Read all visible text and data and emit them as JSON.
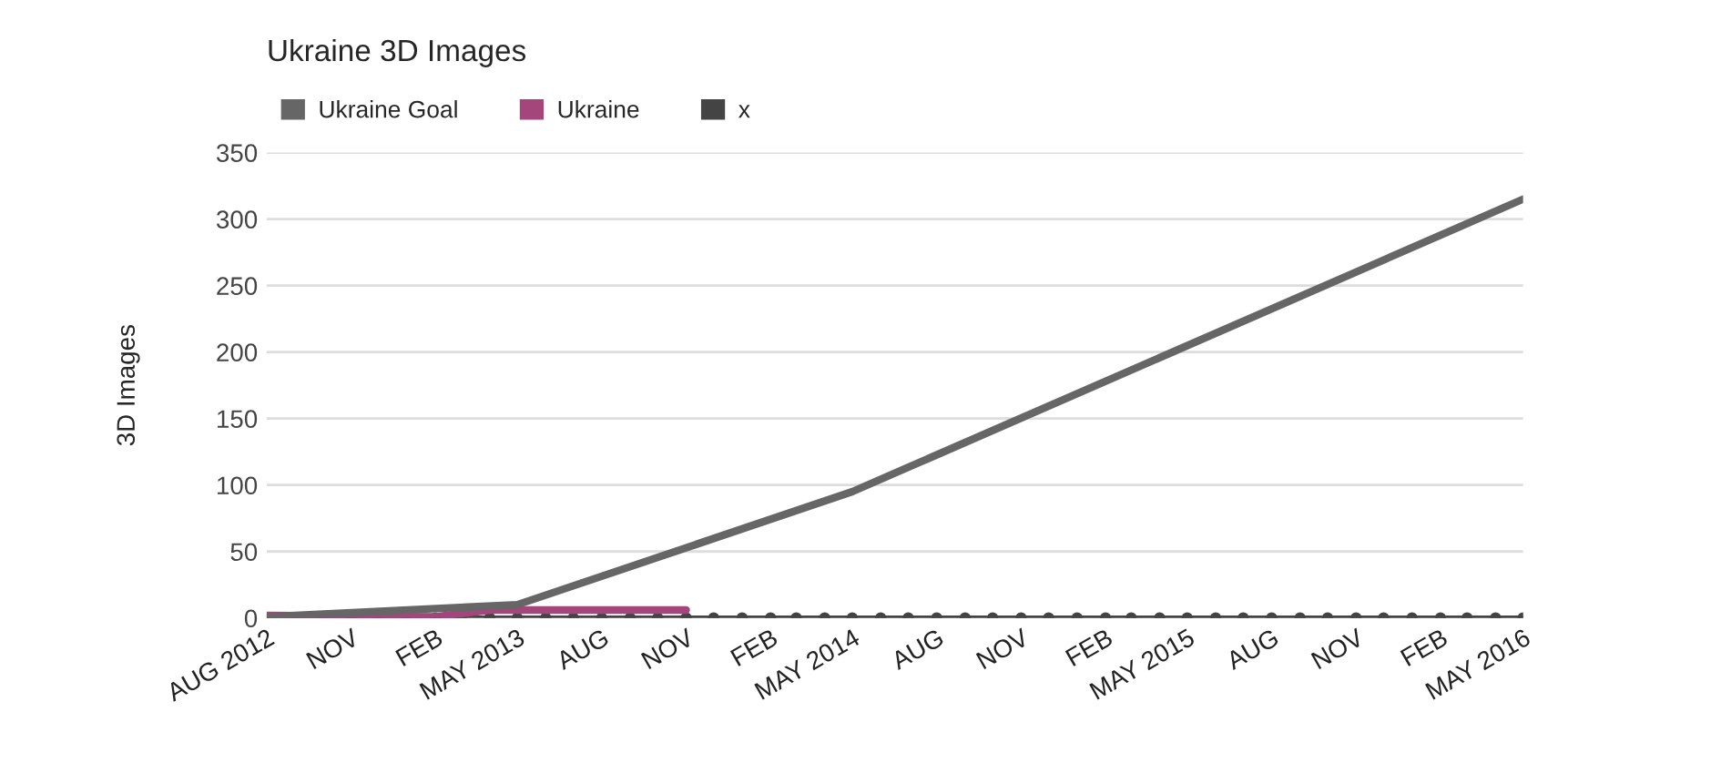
{
  "chart_data": {
    "type": "line",
    "title": "Ukraine 3D Images",
    "ylabel": "3D Images",
    "xlim": [
      "2012-08",
      "2016-05"
    ],
    "xticks": [
      {
        "value": "2012-08",
        "label": "AUG 2012"
      },
      {
        "value": "2012-11",
        "label": "NOV"
      },
      {
        "value": "2013-02",
        "label": "FEB"
      },
      {
        "value": "2013-05",
        "label": "MAY 2013"
      },
      {
        "value": "2013-08",
        "label": "AUG"
      },
      {
        "value": "2013-11",
        "label": "NOV"
      },
      {
        "value": "2014-02",
        "label": "FEB"
      },
      {
        "value": "2014-05",
        "label": "MAY 2014"
      },
      {
        "value": "2014-08",
        "label": "AUG"
      },
      {
        "value": "2014-11",
        "label": "NOV"
      },
      {
        "value": "2015-02",
        "label": "FEB"
      },
      {
        "value": "2015-05",
        "label": "MAY 2015"
      },
      {
        "value": "2015-08",
        "label": "AUG"
      },
      {
        "value": "2015-11",
        "label": "NOV"
      },
      {
        "value": "2016-02",
        "label": "FEB"
      },
      {
        "value": "2016-05",
        "label": "MAY 2016"
      }
    ],
    "ylim": [
      0,
      350
    ],
    "yticks": [
      0,
      50,
      100,
      150,
      200,
      250,
      300,
      350
    ],
    "grid": "y",
    "legend": "top left",
    "series": [
      {
        "name": "Ukraine Goal",
        "color": "#666666",
        "x": [
          "2012-08",
          "2013-05",
          "2014-05",
          "2016-05"
        ],
        "values": [
          1,
          10,
          95,
          315
        ]
      },
      {
        "name": "Ukraine",
        "color": "#a4457c",
        "x": [
          "2012-08",
          "2013-02",
          "2013-04",
          "2013-11"
        ],
        "values": [
          2,
          1,
          6,
          6
        ]
      },
      {
        "name": "x",
        "color": "#444444",
        "marker": "circle",
        "x": [
          "2012-08",
          "2012-09",
          "2012-10",
          "2012-11",
          "2012-12",
          "2013-01",
          "2013-02",
          "2013-03",
          "2013-04",
          "2013-05",
          "2013-06",
          "2013-07",
          "2013-08",
          "2013-09",
          "2013-10",
          "2013-11",
          "2013-12",
          "2014-01",
          "2014-02",
          "2014-03",
          "2014-04",
          "2014-05",
          "2014-06",
          "2014-07",
          "2014-08",
          "2014-09",
          "2014-10",
          "2014-11",
          "2014-12",
          "2015-01",
          "2015-02",
          "2015-03",
          "2015-04",
          "2015-05",
          "2015-06",
          "2015-07",
          "2015-08",
          "2015-09",
          "2015-10",
          "2015-11",
          "2015-12",
          "2016-01",
          "2016-02",
          "2016-03",
          "2016-04",
          "2016-05"
        ],
        "values": [
          0,
          0,
          0,
          0,
          0,
          0,
          0,
          0,
          0,
          0,
          0,
          0,
          0,
          0,
          0,
          0,
          0,
          0,
          0,
          0,
          0,
          0,
          0,
          0,
          0,
          0,
          0,
          0,
          0,
          0,
          0,
          0,
          0,
          0,
          0,
          0,
          0,
          0,
          0,
          0,
          0,
          0,
          0,
          0,
          0,
          0
        ]
      }
    ]
  }
}
